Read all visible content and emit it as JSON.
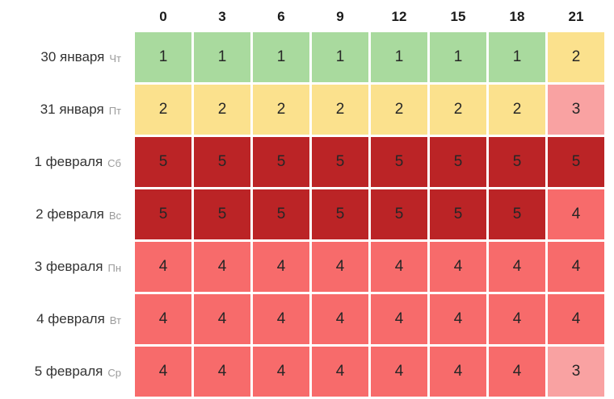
{
  "chart_data": {
    "type": "heatmap",
    "title": "",
    "x_labels": [
      "0",
      "3",
      "6",
      "9",
      "12",
      "15",
      "18",
      "21"
    ],
    "rows": [
      {
        "date": "30 января",
        "weekday": "Чт",
        "values": [
          1,
          1,
          1,
          1,
          1,
          1,
          1,
          2
        ]
      },
      {
        "date": "31 января",
        "weekday": "Пт",
        "values": [
          2,
          2,
          2,
          2,
          2,
          2,
          2,
          3
        ]
      },
      {
        "date": "1 февраля",
        "weekday": "Сб",
        "values": [
          5,
          5,
          5,
          5,
          5,
          5,
          5,
          5
        ]
      },
      {
        "date": "2 февраля",
        "weekday": "Вс",
        "values": [
          5,
          5,
          5,
          5,
          5,
          5,
          5,
          4
        ]
      },
      {
        "date": "3 февраля",
        "weekday": "Пн",
        "values": [
          4,
          4,
          4,
          4,
          4,
          4,
          4,
          4
        ]
      },
      {
        "date": "4 февраля",
        "weekday": "Вт",
        "values": [
          4,
          4,
          4,
          4,
          4,
          4,
          4,
          4
        ]
      },
      {
        "date": "5 февраля",
        "weekday": "Ср",
        "values": [
          4,
          4,
          4,
          4,
          4,
          4,
          4,
          3
        ]
      }
    ],
    "value_colors": {
      "1": "#a9da9e",
      "2": "#fbe18d",
      "3": "#f9a2a2",
      "4": "#f76b6b",
      "5": "#bb2426"
    },
    "layout": {
      "grid": "off",
      "legend": "none",
      "gap_color": "#ffffff"
    }
  }
}
